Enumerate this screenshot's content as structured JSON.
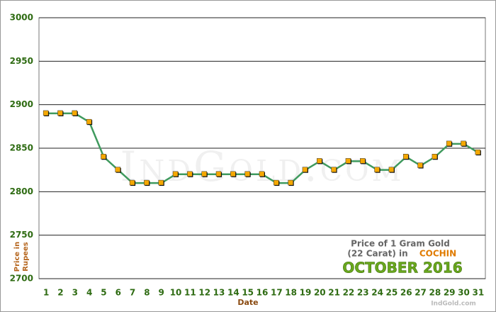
{
  "chart_data": {
    "type": "line",
    "x_label": "Date",
    "y_label": [
      "Price in",
      "Rupees"
    ],
    "categories": [
      "1",
      "2",
      "3",
      "4",
      "5",
      "6",
      "7",
      "8",
      "9",
      "10",
      "11",
      "12",
      "13",
      "14",
      "15",
      "16",
      "17",
      "18",
      "19",
      "20",
      "21",
      "22",
      "23",
      "24",
      "25",
      "26",
      "27",
      "28",
      "29",
      "30",
      "31"
    ],
    "series": [
      {
        "color": "#3f9a5e",
        "marker_color": "#f5a800",
        "values": [
          2890,
          2890,
          2890,
          2880,
          2840,
          2825,
          2810,
          2810,
          2810,
          2820,
          2820,
          2820,
          2820,
          2820,
          2820,
          2820,
          2810,
          2810,
          2825,
          2835,
          2825,
          2835,
          2835,
          2825,
          2825,
          2840,
          2830,
          2840,
          2855,
          2855,
          2845
        ]
      }
    ],
    "ylim": [
      2700,
      3000
    ],
    "yticks": [
      2700,
      2750,
      2800,
      2850,
      2900,
      2950,
      3000
    ],
    "grid": true,
    "annotation": {
      "line1": "Price of 1 Gram Gold",
      "line2": "(22 Carat) in",
      "city": "COCHIN",
      "month": "OCTOBER 2016"
    },
    "watermark": "IndGold.com",
    "footer": "IndGold.com"
  }
}
